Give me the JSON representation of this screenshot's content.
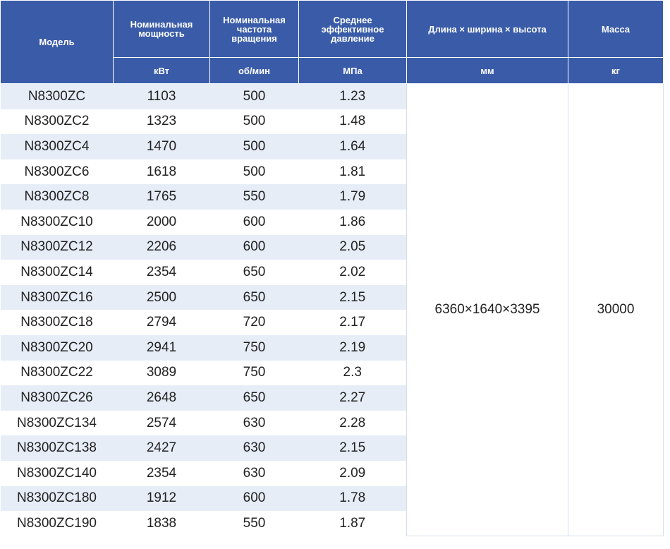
{
  "table": {
    "header": [
      "Модель",
      "Номинальная мощность",
      "Номинальная частота вращения",
      "Среднее эффективное давление",
      "Длина × ширина × высота",
      "Масса"
    ],
    "units": [
      "кВт",
      "об/мин",
      "МПа",
      "мм",
      "кг"
    ],
    "rows": [
      [
        "N8300ZC",
        1103,
        500,
        1.23
      ],
      [
        "N8300ZC2",
        1323,
        500,
        1.48
      ],
      [
        "N8300ZC4",
        1470,
        500,
        1.64
      ],
      [
        "N8300ZC6",
        1618,
        500,
        1.81
      ],
      [
        "N8300ZC8",
        1765,
        550,
        1.79
      ],
      [
        "N8300ZC10",
        2000,
        600,
        1.86
      ],
      [
        "N8300ZC12",
        2206,
        600,
        2.05
      ],
      [
        "N8300ZC14",
        2354,
        650,
        2.02
      ],
      [
        "N8300ZC16",
        2500,
        650,
        2.15
      ],
      [
        "N8300ZC18",
        2794,
        720,
        2.17
      ],
      [
        "N8300ZC20",
        2941,
        750,
        2.19
      ],
      [
        "N8300ZC22",
        3089,
        750,
        2.3
      ],
      [
        "N8300ZC26",
        2648,
        650,
        2.27
      ],
      [
        "N8300ZC134",
        2574,
        630,
        2.28
      ],
      [
        "N8300ZC138",
        2427,
        630,
        2.15
      ],
      [
        "N8300ZC140",
        2354,
        630,
        2.09
      ],
      [
        "N8300ZC180",
        1912,
        600,
        1.78
      ],
      [
        "N8300ZC190",
        1838,
        550,
        1.87
      ]
    ],
    "dimensions": "6360×1640×3395",
    "mass": 30000
  }
}
